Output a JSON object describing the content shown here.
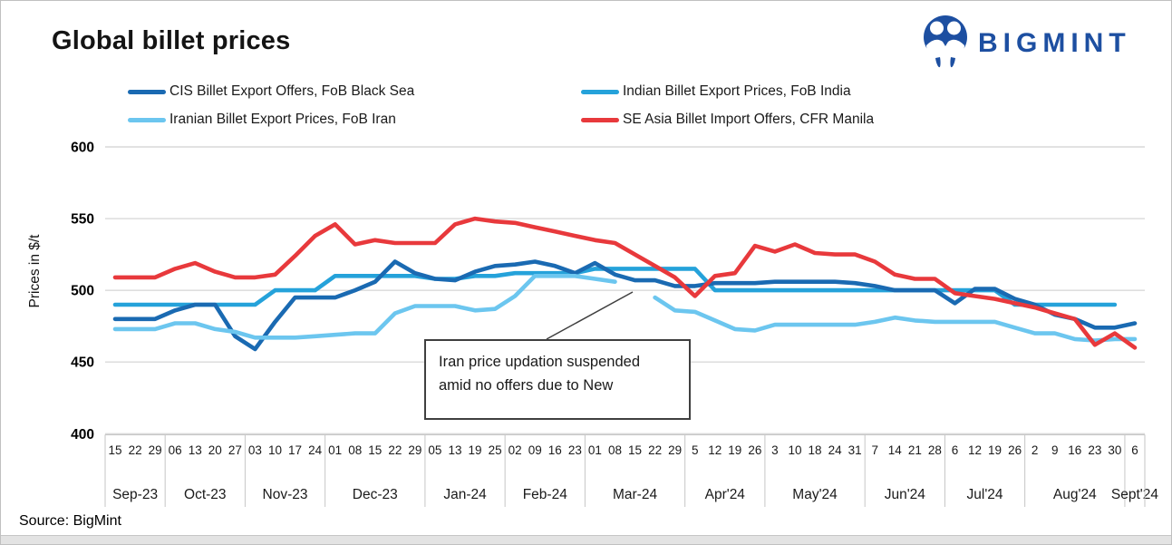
{
  "header": {
    "title": "Global billet prices",
    "brand": "BIGMINT",
    "brand_color": "#1d4fa1"
  },
  "footer": {
    "source": "Source: BigMint"
  },
  "chart_data": {
    "type": "line",
    "title": "Global billet prices",
    "ylabel": "Prices in $/t",
    "ylim": [
      400,
      600
    ],
    "y_ticks": [
      600,
      550,
      500,
      450,
      400
    ],
    "grid": true,
    "legend_position": "top",
    "months": [
      {
        "label": "Sep-23",
        "weeks": [
          "15",
          "22",
          "29"
        ]
      },
      {
        "label": "Oct-23",
        "weeks": [
          "06",
          "13",
          "20",
          "27"
        ]
      },
      {
        "label": "Nov-23",
        "weeks": [
          "03",
          "10",
          "17",
          "24"
        ]
      },
      {
        "label": "Dec-23",
        "weeks": [
          "01",
          "08",
          "15",
          "22",
          "29"
        ]
      },
      {
        "label": "Jan-24",
        "weeks": [
          "05",
          "13",
          "19",
          "25"
        ]
      },
      {
        "label": "Feb-24",
        "weeks": [
          "02",
          "09",
          "16",
          "23"
        ]
      },
      {
        "label": "Mar-24",
        "weeks": [
          "01",
          "08",
          "15",
          "22",
          "29"
        ]
      },
      {
        "label": "Apr'24",
        "weeks": [
          "5",
          "12",
          "19",
          "26"
        ]
      },
      {
        "label": "May'24",
        "weeks": [
          "3",
          "10",
          "18",
          "24",
          "31"
        ]
      },
      {
        "label": "Jun'24",
        "weeks": [
          "7",
          "14",
          "21",
          "28"
        ]
      },
      {
        "label": "Jul'24",
        "weeks": [
          "6",
          "12",
          "19",
          "26"
        ]
      },
      {
        "label": "Aug'24",
        "weeks": [
          "2",
          "9",
          "16",
          "23",
          "30"
        ]
      },
      {
        "label": "Sept'24",
        "weeks": [
          "6"
        ]
      }
    ],
    "series": [
      {
        "name": "CIS Billet Export Offers, FoB Black Sea",
        "color": "#1a6ab2",
        "values": [
          480,
          480,
          480,
          486,
          490,
          490,
          468,
          459,
          478,
          495,
          495,
          495,
          500,
          506,
          520,
          512,
          508,
          507,
          513,
          517,
          518,
          520,
          517,
          512,
          519,
          511,
          507,
          507,
          503,
          503,
          505,
          505,
          505,
          506,
          506,
          506,
          506,
          505,
          503,
          500,
          500,
          500,
          491,
          501,
          501,
          494,
          490,
          483,
          480,
          474,
          474,
          477
        ]
      },
      {
        "name": "Indian Billet Export Prices, FoB India",
        "color": "#25a2da",
        "values": [
          490,
          490,
          490,
          490,
          490,
          490,
          490,
          490,
          500,
          500,
          500,
          510,
          510,
          510,
          510,
          510,
          508,
          508,
          510,
          510,
          512,
          512,
          512,
          512,
          515,
          515,
          515,
          515,
          515,
          515,
          500,
          500,
          500,
          500,
          500,
          500,
          500,
          500,
          500,
          500,
          500,
          500,
          500,
          500,
          500,
          490,
          490,
          490,
          490,
          490,
          490,
          null
        ]
      },
      {
        "name": "Iranian Billet Export Prices, FoB Iran",
        "color": "#6cc6ef",
        "values": [
          473,
          473,
          473,
          477,
          477,
          473,
          471,
          467,
          467,
          467,
          468,
          469,
          470,
          470,
          484,
          489,
          489,
          489,
          486,
          487,
          496,
          510,
          510,
          510,
          508,
          506,
          null,
          495,
          486,
          485,
          479,
          473,
          472,
          476,
          476,
          476,
          476,
          476,
          478,
          481,
          479,
          478,
          478,
          478,
          478,
          474,
          470,
          470,
          466,
          465,
          466,
          466
        ]
      },
      {
        "name": "SE Asia Billet Import Offers, CFR Manila",
        "color": "#e8393c",
        "values": [
          509,
          509,
          509,
          515,
          519,
          513,
          509,
          509,
          511,
          524,
          538,
          546,
          532,
          535,
          533,
          533,
          533,
          546,
          550,
          548,
          547,
          544,
          541,
          538,
          535,
          533,
          525,
          517,
          509,
          496,
          510,
          512,
          531,
          527,
          532,
          526,
          525,
          525,
          520,
          511,
          508,
          508,
          498,
          496,
          494,
          491,
          488,
          484,
          480,
          462,
          470,
          460
        ]
      }
    ],
    "annotation": {
      "line1": "Iran price updation suspended",
      "line2": "amid no offers due to New"
    }
  }
}
